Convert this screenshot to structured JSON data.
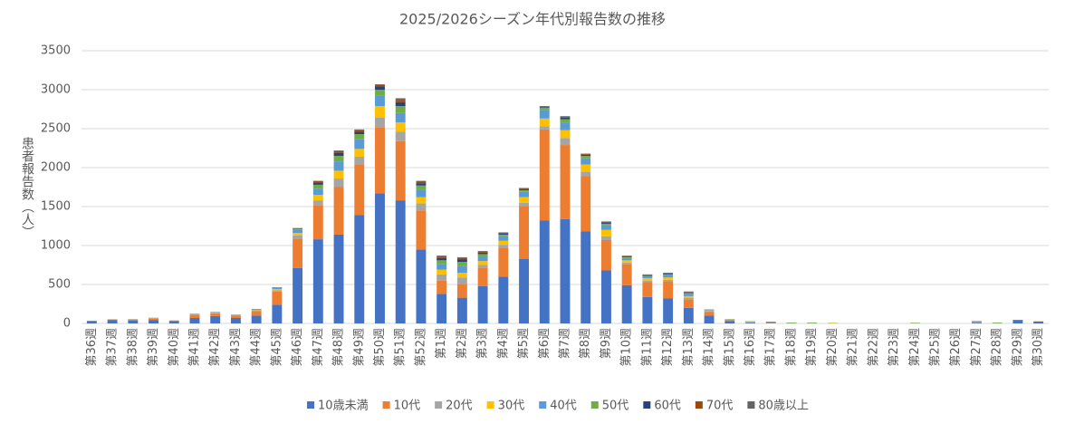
{
  "chart_data": {
    "type": "stacked-bar",
    "title": "2025/2026シーズン年代別報告数の推移",
    "y_label": "患者報告数（人）",
    "categories": [
      "第36週",
      "第37週",
      "第38週",
      "第39週",
      "第40週",
      "第41週",
      "第42週",
      "第43週",
      "第44週",
      "第45週",
      "第46週",
      "第47週",
      "第48週",
      "第49週",
      "第50週",
      "第51週",
      "第52週",
      "第1週",
      "第2週",
      "第3週",
      "第4週",
      "第5週",
      "第6週",
      "第7週",
      "第8週",
      "第9週",
      "第10週",
      "第11週",
      "第12週",
      "第13週",
      "第14週",
      "第15週",
      "第16週",
      "第17週",
      "第18週",
      "第19週",
      "第20週",
      "第21週",
      "第22週",
      "第23週",
      "第24週",
      "第25週",
      "第26週",
      "第27週",
      "第28週",
      "第29週",
      "第30週"
    ],
    "ylim": [
      0,
      3500
    ],
    "yticks": [
      0,
      500,
      1000,
      1500,
      2000,
      2500,
      3000,
      3500
    ],
    "grid": true,
    "legend": "bottom",
    "series": [
      {
        "name": "10歳未満",
        "color": "#4472c4",
        "values": [
          30,
          45,
          35,
          45,
          30,
          70,
          95,
          70,
          100,
          240,
          710,
          1080,
          1140,
          1390,
          1670,
          1580,
          950,
          380,
          330,
          480,
          600,
          830,
          1320,
          1340,
          1180,
          680,
          490,
          340,
          320,
          200,
          100,
          30,
          10,
          5,
          0,
          0,
          0,
          0,
          0,
          0,
          0,
          0,
          0,
          10,
          0,
          45,
          25
        ]
      },
      {
        "name": "10代",
        "color": "#ed7d31",
        "values": [
          3,
          5,
          15,
          20,
          5,
          40,
          35,
          30,
          60,
          170,
          380,
          440,
          610,
          650,
          850,
          760,
          500,
          170,
          170,
          230,
          370,
          680,
          1170,
          950,
          710,
          390,
          270,
          190,
          220,
          110,
          50,
          15,
          5,
          5,
          0,
          0,
          0,
          0,
          0,
          0,
          0,
          0,
          0,
          5,
          0,
          0,
          3
        ]
      },
      {
        "name": "20代",
        "color": "#a5a5a5",
        "values": [
          0,
          2,
          3,
          3,
          2,
          5,
          5,
          5,
          8,
          15,
          40,
          60,
          110,
          100,
          120,
          120,
          90,
          80,
          90,
          40,
          40,
          40,
          40,
          90,
          60,
          50,
          20,
          20,
          20,
          20,
          8,
          3,
          2,
          0,
          0,
          0,
          0,
          0,
          0,
          0,
          0,
          0,
          0,
          3,
          0,
          0,
          0
        ]
      },
      {
        "name": "30代",
        "color": "#ffc000",
        "values": [
          0,
          1,
          2,
          3,
          1,
          3,
          5,
          3,
          5,
          15,
          30,
          70,
          100,
          100,
          150,
          120,
          80,
          60,
          60,
          50,
          50,
          70,
          100,
          100,
          90,
          80,
          30,
          30,
          30,
          20,
          8,
          3,
          3,
          0,
          0,
          0,
          5,
          0,
          0,
          0,
          0,
          0,
          0,
          0,
          0,
          0,
          0
        ]
      },
      {
        "name": "40代",
        "color": "#5b9bd5",
        "values": [
          1,
          1,
          2,
          2,
          1,
          4,
          5,
          4,
          7,
          15,
          40,
          80,
          120,
          130,
          130,
          120,
          100,
          70,
          90,
          60,
          60,
          70,
          110,
          100,
          80,
          60,
          30,
          20,
          30,
          30,
          8,
          5,
          3,
          0,
          0,
          0,
          0,
          0,
          0,
          0,
          0,
          0,
          0,
          2,
          0,
          0,
          0
        ]
      },
      {
        "name": "50代",
        "color": "#70ad47",
        "values": [
          1,
          1,
          1,
          1,
          1,
          2,
          2,
          2,
          3,
          5,
          15,
          50,
          70,
          60,
          80,
          90,
          50,
          50,
          50,
          30,
          20,
          20,
          30,
          40,
          30,
          20,
          10,
          10,
          10,
          10,
          3,
          2,
          5,
          2,
          10,
          10,
          3,
          0,
          0,
          0,
          8,
          0,
          0,
          0,
          10,
          0,
          0
        ]
      },
      {
        "name": "60代",
        "color": "#264478",
        "values": [
          0,
          0,
          0,
          0,
          0,
          1,
          1,
          1,
          2,
          3,
          5,
          30,
          40,
          30,
          40,
          50,
          30,
          30,
          30,
          20,
          15,
          15,
          10,
          20,
          15,
          15,
          10,
          10,
          10,
          10,
          2,
          0,
          0,
          0,
          0,
          0,
          0,
          0,
          0,
          0,
          0,
          0,
          0,
          0,
          0,
          0,
          0
        ]
      },
      {
        "name": "70代",
        "color": "#9e480e",
        "values": [
          0,
          0,
          0,
          0,
          0,
          0,
          0,
          0,
          0,
          2,
          3,
          15,
          20,
          20,
          20,
          30,
          20,
          20,
          20,
          10,
          10,
          10,
          5,
          10,
          10,
          10,
          5,
          5,
          5,
          5,
          1,
          0,
          0,
          8,
          0,
          0,
          0,
          0,
          0,
          0,
          0,
          0,
          0,
          5,
          0,
          0,
          0
        ]
      },
      {
        "name": "80歳以上",
        "color": "#636363",
        "values": [
          0,
          0,
          0,
          0,
          0,
          0,
          0,
          0,
          0,
          0,
          2,
          5,
          10,
          10,
          10,
          20,
          10,
          10,
          10,
          10,
          5,
          5,
          5,
          10,
          5,
          5,
          5,
          5,
          5,
          5,
          0,
          0,
          0,
          0,
          0,
          0,
          0,
          0,
          0,
          0,
          0,
          0,
          0,
          5,
          0,
          0,
          0
        ]
      }
    ]
  }
}
